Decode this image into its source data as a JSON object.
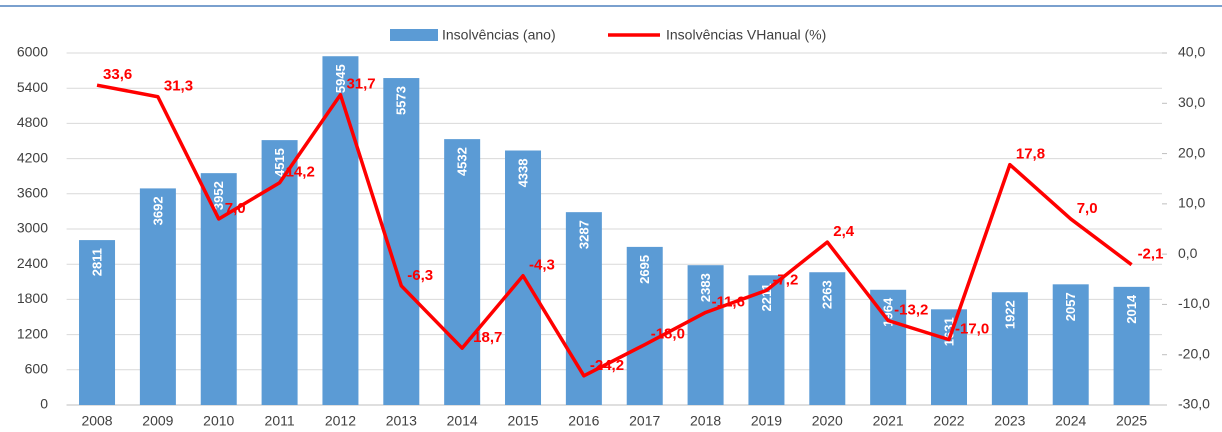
{
  "chart_data": {
    "type": "bar",
    "categories": [
      "2008",
      "2009",
      "2010",
      "2011",
      "2012",
      "2013",
      "2014",
      "2015",
      "2016",
      "2017",
      "2018",
      "2019",
      "2020",
      "2021",
      "2022",
      "2023",
      "2024",
      "2025"
    ],
    "series": [
      {
        "name": "Insolvências (ano)",
        "color": "#5b9bd5",
        "type": "bar",
        "values": [
          2811,
          3692,
          3952,
          4515,
          5945,
          5573,
          4532,
          4338,
          3287,
          2695,
          2383,
          2211,
          2263,
          1964,
          1631,
          1922,
          2057,
          2014
        ]
      },
      {
        "name": "Insolvências VHanual (%)",
        "color": "#ff0000",
        "type": "line",
        "axis": "y2",
        "values": [
          33.6,
          31.3,
          7.0,
          14.2,
          31.7,
          -6.3,
          -18.7,
          -4.3,
          -24.2,
          -18.0,
          -11.6,
          -7.2,
          2.4,
          -13.2,
          -17.0,
          17.8,
          7.0,
          -2.1
        ],
        "value_labels": [
          "33,6",
          "31,3",
          "7,0",
          "14,2",
          "31,7",
          "-6,3",
          "-18,7",
          "-4,3",
          "-24,2",
          "-18,0",
          "-11,6",
          "-7,2",
          "2,4",
          "-13,2",
          "-17,0",
          "17,8",
          "7,0",
          "-2,1"
        ]
      }
    ],
    "ylim": [
      0,
      6000
    ],
    "yticks": [
      0,
      600,
      1200,
      1800,
      2400,
      3000,
      3600,
      4200,
      4800,
      5400,
      6000
    ],
    "y2lim": [
      -30,
      40
    ],
    "y2ticks": [
      {
        "value": -30,
        "label": "-30,0"
      },
      {
        "value": -20,
        "label": "-20,0"
      },
      {
        "value": -10,
        "label": "-10,0"
      },
      {
        "value": 0,
        "label": "0,0"
      },
      {
        "value": 10,
        "label": "10,0"
      },
      {
        "value": 20,
        "label": "20,0"
      },
      {
        "value": 30,
        "label": "30,0"
      },
      {
        "value": 40,
        "label": "40,0"
      }
    ],
    "grid": true,
    "legend": "top"
  }
}
